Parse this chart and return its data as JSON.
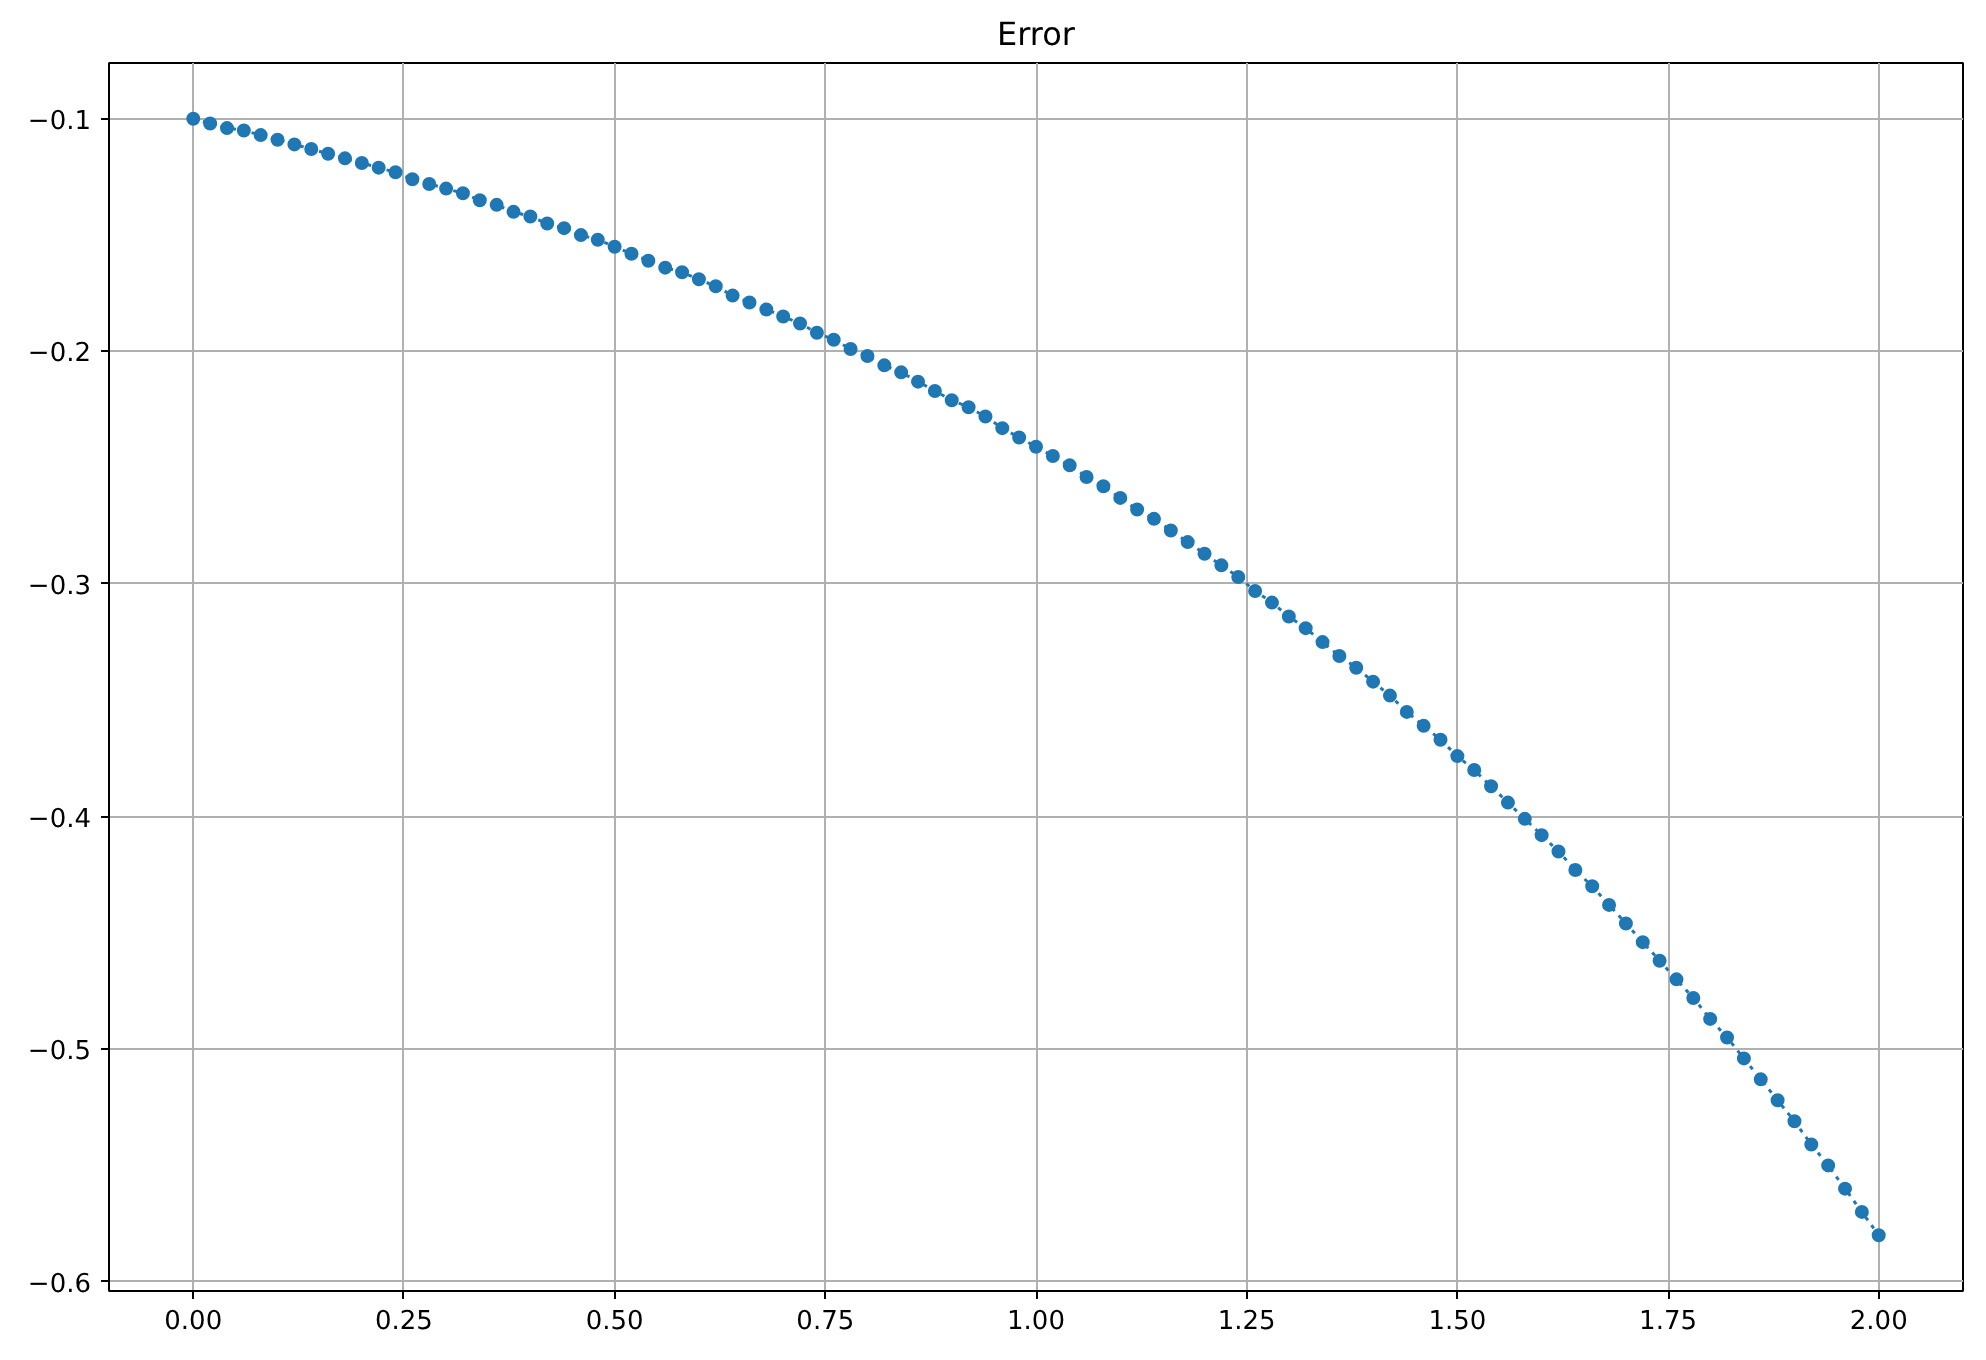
{
  "chart_data": {
    "type": "line",
    "title": "Error",
    "x": [
      0,
      0.02,
      0.04,
      0.06,
      0.08,
      0.1,
      0.12,
      0.14,
      0.16,
      0.18,
      0.2,
      0.22,
      0.24,
      0.26,
      0.28,
      0.3,
      0.32,
      0.34,
      0.36,
      0.38,
      0.4,
      0.42,
      0.44,
      0.46,
      0.48,
      0.5,
      0.52,
      0.54,
      0.56,
      0.58,
      0.6,
      0.62,
      0.64,
      0.66,
      0.68,
      0.7,
      0.72,
      0.74,
      0.76,
      0.78,
      0.8,
      0.82,
      0.84,
      0.86,
      0.88,
      0.9,
      0.92,
      0.94,
      0.96,
      0.98,
      1.0,
      1.02,
      1.04,
      1.06,
      1.08,
      1.1,
      1.12,
      1.14,
      1.16,
      1.18,
      1.2,
      1.22,
      1.24,
      1.26,
      1.28,
      1.3,
      1.32,
      1.34,
      1.36,
      1.38,
      1.4,
      1.42,
      1.44,
      1.46,
      1.48,
      1.5,
      1.52,
      1.54,
      1.56,
      1.58,
      1.6,
      1.62,
      1.64,
      1.66,
      1.68,
      1.7,
      1.72,
      1.74,
      1.76,
      1.78,
      1.8,
      1.82,
      1.84,
      1.86,
      1.88,
      1.9,
      1.92,
      1.94,
      1.96,
      1.98,
      2.0
    ],
    "series": [
      {
        "color": "#1f77b4",
        "values": [
          -0.1,
          -0.102,
          -0.104,
          -0.105,
          -0.107,
          -0.109,
          -0.111,
          -0.113,
          -0.115,
          -0.117,
          -0.119,
          -0.121,
          -0.123,
          -0.126,
          -0.128,
          -0.13,
          -0.132,
          -0.135,
          -0.137,
          -0.14,
          -0.142,
          -0.145,
          -0.147,
          -0.15,
          -0.152,
          -0.155,
          -0.158,
          -0.161,
          -0.164,
          -0.166,
          -0.169,
          -0.172,
          -0.176,
          -0.179,
          -0.182,
          -0.185,
          -0.188,
          -0.192,
          -0.195,
          -0.199,
          -0.202,
          -0.206,
          -0.209,
          -0.213,
          -0.217,
          -0.221,
          -0.224,
          -0.228,
          -0.233,
          -0.237,
          -0.241,
          -0.245,
          -0.249,
          -0.254,
          -0.258,
          -0.263,
          -0.268,
          -0.272,
          -0.277,
          -0.282,
          -0.287,
          -0.292,
          -0.297,
          -0.303,
          -0.308,
          -0.314,
          -0.319,
          -0.325,
          -0.331,
          -0.336,
          -0.342,
          -0.348,
          -0.355,
          -0.361,
          -0.367,
          -0.374,
          -0.38,
          -0.387,
          -0.394,
          -0.401,
          -0.408,
          -0.415,
          -0.423,
          -0.43,
          -0.438,
          -0.446,
          -0.454,
          -0.462,
          -0.47,
          -0.478,
          -0.487,
          -0.495,
          -0.504,
          -0.513,
          -0.522,
          -0.531,
          -0.541,
          -0.55,
          -0.56,
          -0.57,
          -0.58
        ]
      }
    ],
    "xlim": [
      -0.1,
      2.1
    ],
    "ylim": [
      -0.604,
      -0.076
    ],
    "xticks": [
      {
        "value": 0,
        "label": "0.00"
      },
      0.25,
      {
        "value": 0.5,
        "label": "0.50"
      },
      0.75,
      {
        "value": 1,
        "label": "1.00"
      },
      1.25,
      {
        "value": 1.5,
        "label": "1.50"
      },
      1.75,
      {
        "value": 2,
        "label": "2.00"
      }
    ],
    "yticks": [
      {
        "value": -0.6,
        "label": "−0.6"
      },
      {
        "value": -0.5,
        "label": "−0.5"
      },
      {
        "value": -0.4,
        "label": "−0.4"
      },
      {
        "value": -0.3,
        "label": "−0.3"
      },
      {
        "value": -0.2,
        "label": "−0.2"
      },
      {
        "value": -0.1,
        "label": "−0.1"
      }
    ],
    "grid": true,
    "marker": "circle",
    "line_style": "dotted"
  }
}
